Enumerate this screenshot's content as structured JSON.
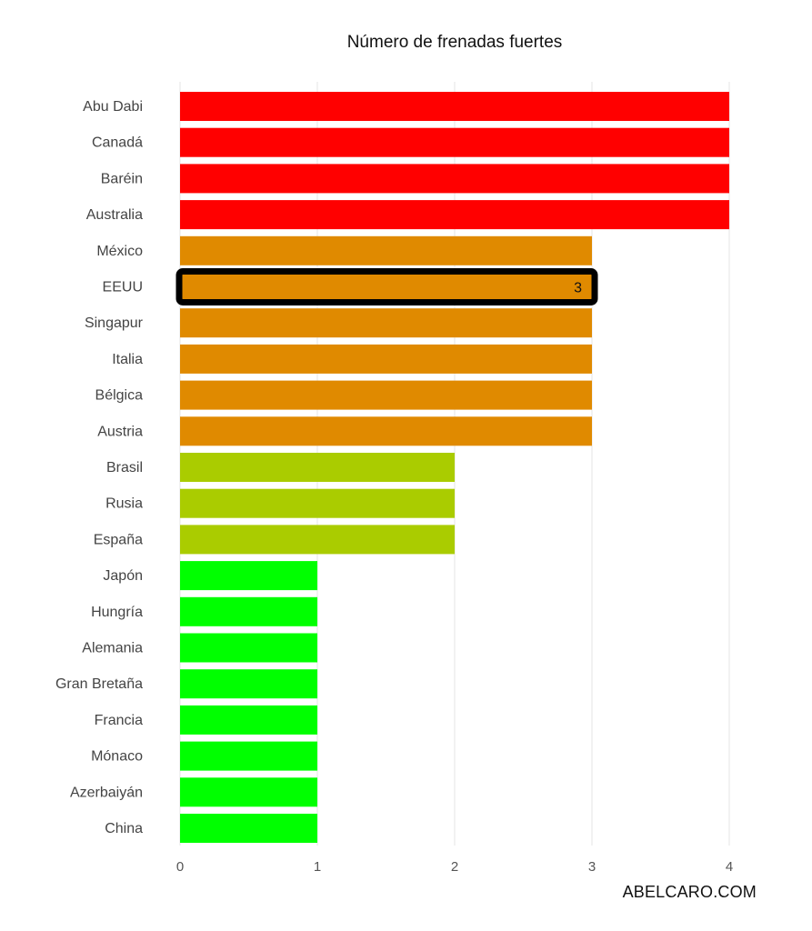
{
  "chart_data": {
    "type": "bar",
    "orientation": "horizontal",
    "title": "Número de frenadas fuertes",
    "xlabel": "",
    "ylabel": "",
    "xlim": [
      0,
      4
    ],
    "x_ticks": [
      0,
      1,
      2,
      3,
      4
    ],
    "grid": "vertical",
    "categories": [
      "Abu Dabi",
      "Canadá",
      "Baréin",
      "Australia",
      "México",
      "EEUU",
      "Singapur",
      "Italia",
      "Bélgica",
      "Austria",
      "Brasil",
      "Rusia",
      "España",
      "Japón",
      "Hungría",
      "Alemania",
      "Gran Bretaña",
      "Francia",
      "Mónaco",
      "Azerbaiyán",
      "China"
    ],
    "values": [
      4,
      4,
      4,
      4,
      3,
      3,
      3,
      3,
      3,
      3,
      2,
      2,
      2,
      1,
      1,
      1,
      1,
      1,
      1,
      1,
      1
    ],
    "color_by_value": {
      "4": "#ff0000",
      "3": "#e08a00",
      "2": "#aacc00",
      "1": "#00ff00"
    },
    "highlight": {
      "category": "EEUU",
      "label": "3",
      "outline_color": "#000000"
    }
  },
  "credit": "ABELCARO.COM"
}
